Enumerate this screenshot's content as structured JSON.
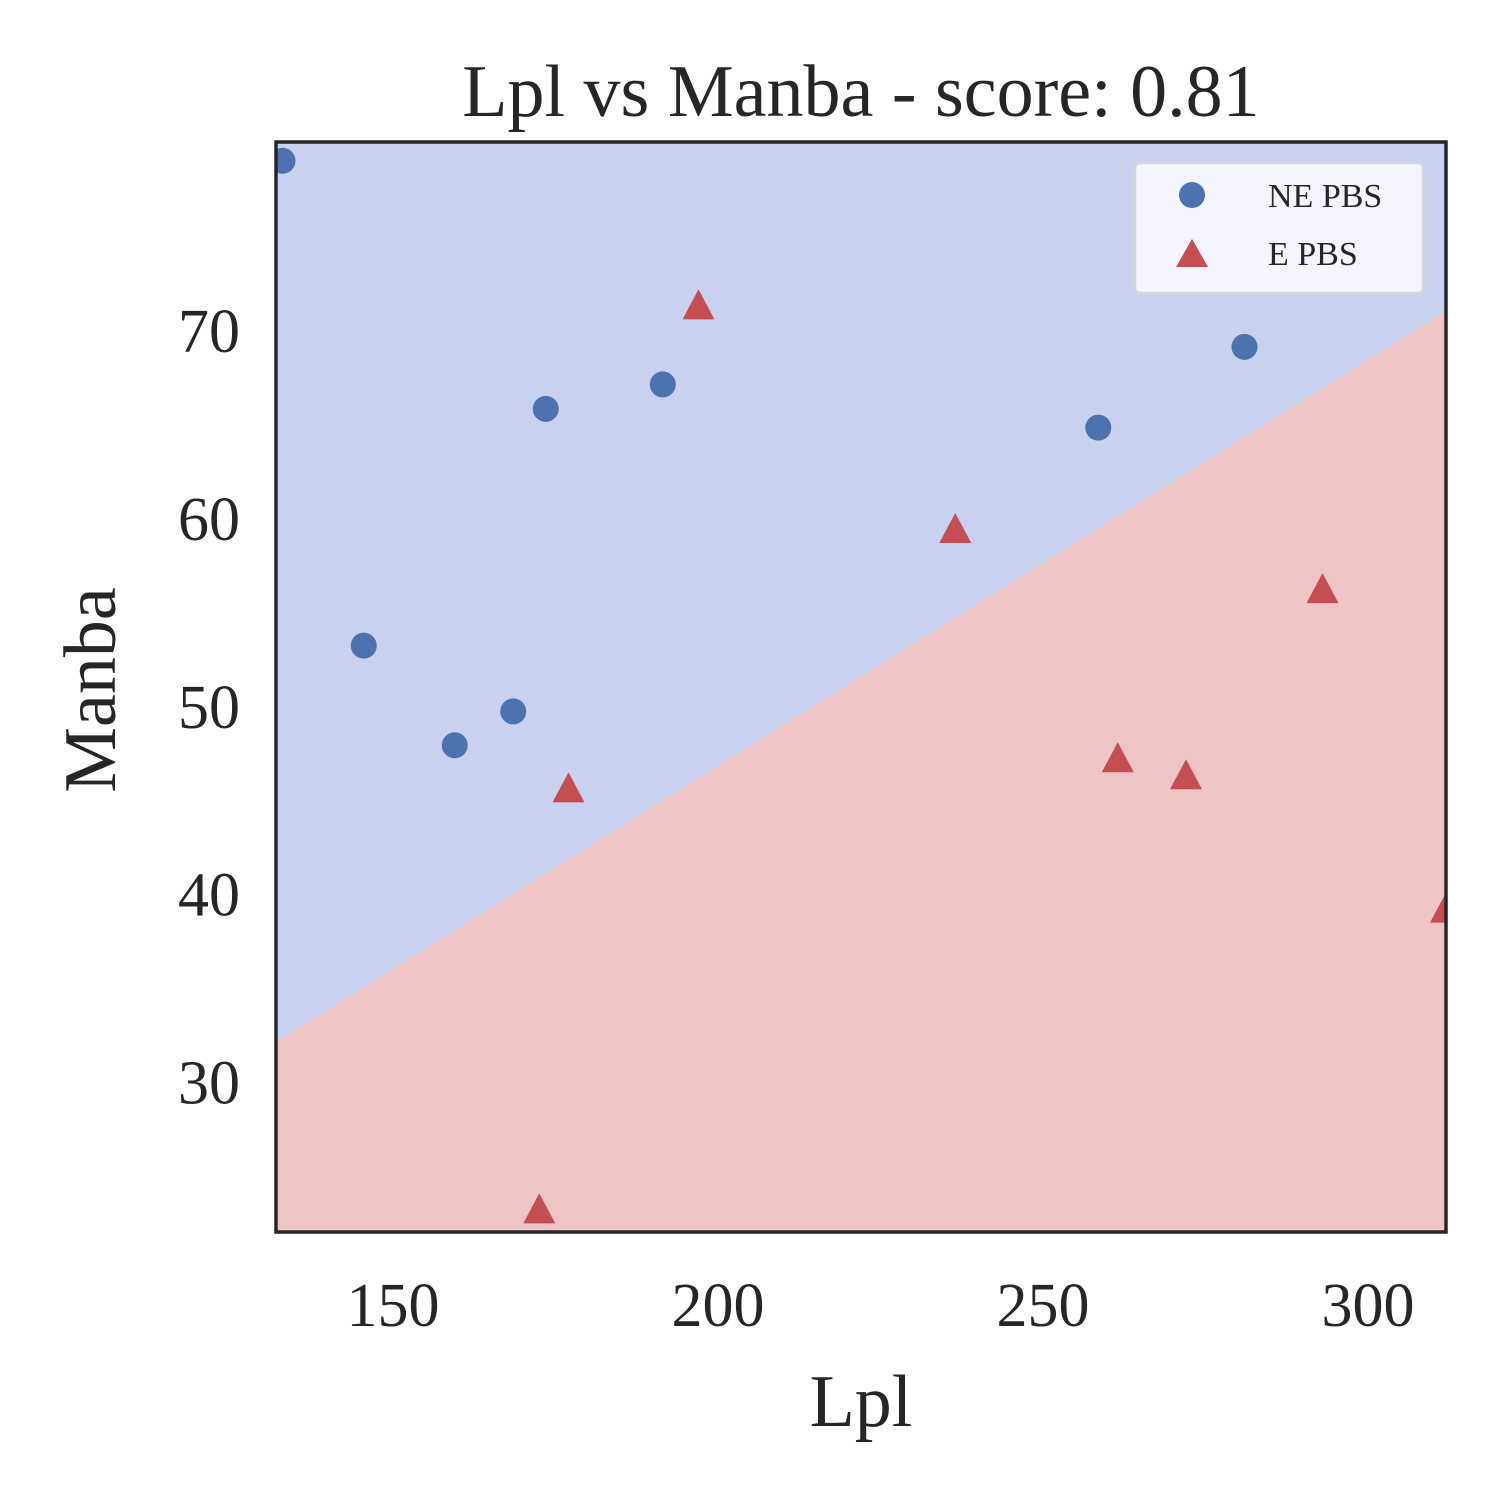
{
  "chart_data": {
    "type": "scatter",
    "title": "Lpl vs Manba - score: 0.81",
    "xlabel": "Lpl",
    "ylabel": "Manba",
    "xlim": [
      132,
      312
    ],
    "ylim": [
      22,
      80
    ],
    "xticks": [
      150,
      200,
      250,
      300
    ],
    "yticks": [
      30,
      40,
      50,
      60,
      70
    ],
    "grid": false,
    "legend_position": "top-right",
    "decision_boundary": {
      "points": [
        [
          132,
          32.1
        ],
        [
          312,
          71.0
        ]
      ],
      "region_above_class": "NE PBS",
      "region_below_class": "E PBS",
      "colors": {
        "above": "#c9d1f1",
        "below": "#eec5c4"
      }
    },
    "series": [
      {
        "name": "NE PBS",
        "marker": "circle",
        "color": "#4c72b0",
        "points": [
          [
            133,
            79
          ],
          [
            145.5,
            53.2
          ],
          [
            159.5,
            47.9
          ],
          [
            168.5,
            49.7
          ],
          [
            173.5,
            65.8
          ],
          [
            191.5,
            67.1
          ],
          [
            258.5,
            64.8
          ],
          [
            281,
            69.1
          ]
        ]
      },
      {
        "name": "E PBS",
        "marker": "triangle",
        "color": "#c44e52",
        "points": [
          [
            172.5,
            23.1
          ],
          [
            177,
            45.5
          ],
          [
            197,
            71.2
          ],
          [
            236.5,
            59.3
          ],
          [
            261.5,
            47.1
          ],
          [
            272,
            46.2
          ],
          [
            293,
            56.1
          ],
          [
            312,
            39.1
          ]
        ]
      }
    ]
  }
}
